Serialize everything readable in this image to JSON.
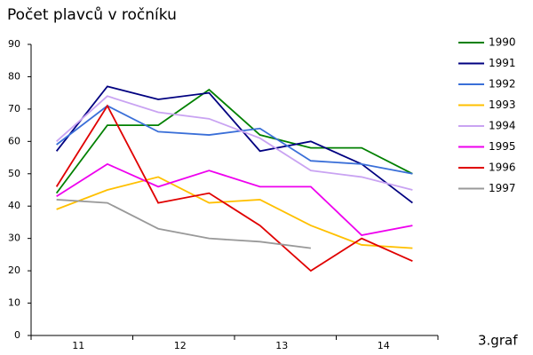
{
  "chart_data": {
    "type": "line",
    "title": "Počet plavců v ročníku",
    "annotation": "3.graf",
    "categories": [
      "11",
      null,
      "12",
      null,
      "13",
      null,
      "14",
      null
    ],
    "series": [
      {
        "name": "1990",
        "color": "#008000",
        "values": [
          44,
          65,
          65,
          76,
          62,
          58,
          58,
          50
        ]
      },
      {
        "name": "1991",
        "color": "#000080",
        "values": [
          57,
          77,
          73,
          75,
          57,
          60,
          53,
          41
        ]
      },
      {
        "name": "1992",
        "color": "#3a6fd8",
        "values": [
          59,
          71,
          63,
          62,
          64,
          54,
          53,
          50
        ]
      },
      {
        "name": "1993",
        "color": "#ffc000",
        "values": [
          39,
          45,
          49,
          41,
          42,
          34,
          28,
          27
        ]
      },
      {
        "name": "1994",
        "color": "#c9a3f2",
        "values": [
          60,
          74,
          69,
          67,
          61,
          51,
          49,
          45
        ]
      },
      {
        "name": "1995",
        "color": "#ee00ee",
        "values": [
          43,
          53,
          46,
          51,
          46,
          46,
          31,
          34
        ]
      },
      {
        "name": "1996",
        "color": "#e00000",
        "values": [
          46,
          71,
          41,
          44,
          34,
          20,
          30,
          23
        ]
      },
      {
        "name": "1997",
        "color": "#999999",
        "values": [
          42,
          41,
          33,
          30,
          29,
          27,
          null,
          null
        ]
      }
    ],
    "ylim": [
      0,
      90
    ],
    "yticks": [
      0,
      10,
      20,
      30,
      40,
      50,
      60,
      70,
      80,
      90
    ],
    "legend": "right"
  }
}
